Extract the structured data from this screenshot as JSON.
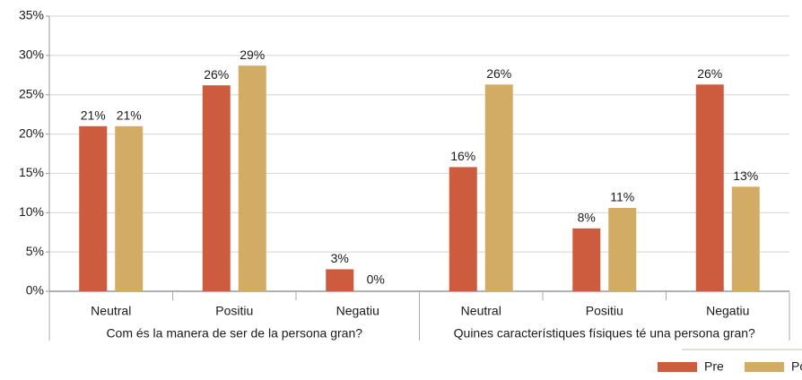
{
  "chart_data": {
    "type": "bar",
    "groups": [
      {
        "name": "Com és la manera de ser de la persona gran?",
        "categories": [
          "Neutral",
          "Positiu",
          "Negatiu"
        ]
      },
      {
        "name": "Quines característiques físiques té una persona gran?",
        "categories": [
          "Neutral",
          "Positiu",
          "Negatiu"
        ]
      }
    ],
    "series": [
      {
        "name": "Pre",
        "color": "#cd5b3d",
        "values": [
          21,
          26.2,
          2.8,
          15.8,
          8,
          26.3
        ],
        "value_labels": [
          "21%",
          "26%",
          "3%",
          "16%",
          "8%",
          "26%"
        ]
      },
      {
        "name": "Post",
        "color": "#d2ab64",
        "values": [
          21,
          28.7,
          0,
          26.3,
          10.6,
          13.3
        ],
        "value_labels": [
          "21%",
          "29%",
          "0%",
          "26%",
          "11%",
          "13%"
        ]
      }
    ],
    "ylim": [
      0,
      35
    ],
    "yticks": [
      {
        "value": 0,
        "label": "0%"
      },
      {
        "value": 5,
        "label": "5%"
      },
      {
        "value": 10,
        "label": "10%"
      },
      {
        "value": 15,
        "label": "15%"
      },
      {
        "value": 20,
        "label": "20%"
      },
      {
        "value": 25,
        "label": "25%"
      },
      {
        "value": 30,
        "label": "30%"
      },
      {
        "value": 35,
        "label": "35%"
      }
    ],
    "grid": true,
    "legend": "bottom-right"
  }
}
